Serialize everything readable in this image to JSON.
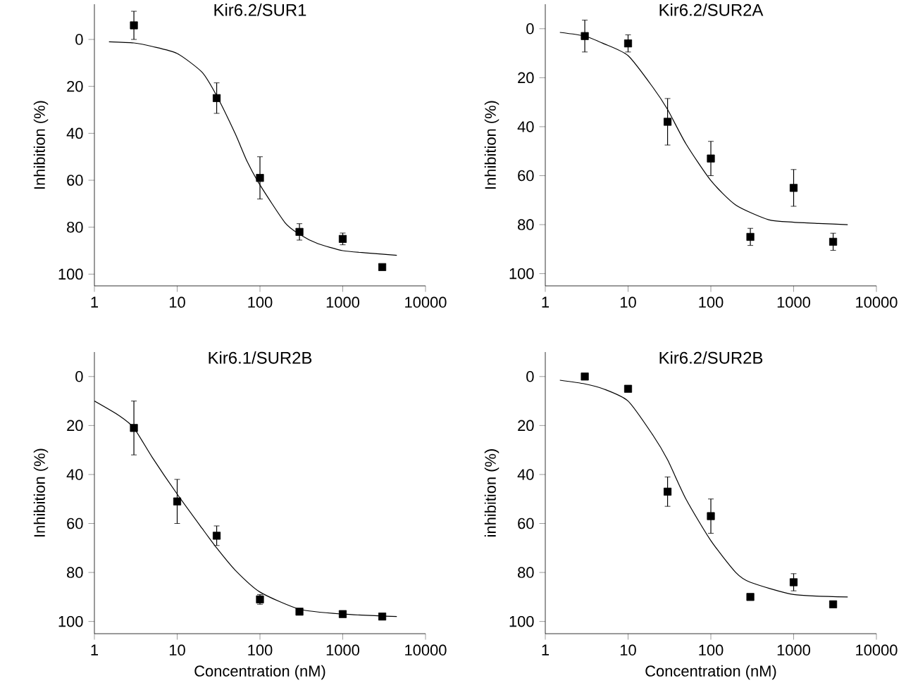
{
  "chart_data": [
    {
      "type": "scatter",
      "title": "Kir6.2/SUR1",
      "ylabel": "Inhibition (%)",
      "log": "x",
      "xlim": [
        1,
        10000
      ],
      "ylim": [
        105,
        -15
      ],
      "xticks": [
        1,
        10,
        100,
        1000,
        10000
      ],
      "yticks": [
        0,
        20,
        40,
        60,
        80,
        100
      ],
      "marker": "square",
      "series": [
        {
          "type": "scatter",
          "color": "#000000",
          "x": [
            3,
            30,
            100,
            300,
            1000,
            3000
          ],
          "values": [
            -6,
            25,
            59,
            82,
            85,
            97
          ],
          "errors": [
            6,
            6.5,
            9,
            3.5,
            2.5,
            null
          ]
        },
        {
          "type": "line",
          "color": "#000000",
          "marker": "none",
          "line_style": "solid",
          "x": [
            1.5,
            3,
            5,
            10,
            20,
            30,
            50,
            70,
            100,
            200,
            300,
            500,
            1000,
            2000,
            4500
          ],
          "values": [
            1,
            1.5,
            3,
            6,
            14,
            24,
            40,
            52,
            62,
            78,
            83,
            87,
            90,
            91,
            92
          ]
        }
      ]
    },
    {
      "type": "scatter",
      "title": "Kir6.2/SUR2A",
      "ylabel": "Inhibition (%)",
      "log": "x",
      "xlim": [
        1,
        10000
      ],
      "ylim": [
        105,
        -10
      ],
      "xticks": [
        1,
        10,
        100,
        1000,
        10000
      ],
      "yticks": [
        0,
        20,
        40,
        60,
        80,
        100
      ],
      "marker": "square",
      "series": [
        {
          "type": "scatter",
          "color": "#000000",
          "x": [
            3,
            10,
            30,
            100,
            300,
            1000,
            3000
          ],
          "values": [
            3,
            6,
            38,
            53,
            85,
            65,
            87
          ],
          "errors": [
            6.5,
            3.5,
            9.5,
            7,
            3.5,
            7.5,
            3.5
          ]
        },
        {
          "type": "line",
          "color": "#000000",
          "marker": "none",
          "line_style": "solid",
          "x": [
            1.5,
            3,
            5,
            10,
            20,
            30,
            50,
            100,
            200,
            500,
            1000,
            2000,
            4500
          ],
          "values": [
            1.5,
            3,
            6,
            11,
            24,
            33,
            47,
            62,
            72,
            78,
            79,
            79.5,
            80
          ]
        }
      ]
    },
    {
      "type": "scatter",
      "title": "Kir6.1/SUR2B",
      "xlabel": "Concentration (nM)",
      "ylabel": "Inhibition (%)",
      "log": "x",
      "xlim": [
        1,
        10000
      ],
      "ylim": [
        105,
        -10
      ],
      "xticks": [
        1,
        10,
        100,
        1000,
        10000
      ],
      "yticks": [
        0,
        20,
        40,
        60,
        80,
        100
      ],
      "marker": "square",
      "series": [
        {
          "type": "scatter",
          "color": "#000000",
          "x": [
            3,
            10,
            30,
            100,
            300,
            1000,
            3000
          ],
          "values": [
            21,
            51,
            65,
            91,
            96,
            97,
            98
          ],
          "errors": [
            11,
            9,
            4,
            2,
            null,
            null,
            null
          ]
        },
        {
          "type": "line",
          "color": "#000000",
          "marker": "none",
          "line_style": "solid",
          "x": [
            1,
            2,
            3,
            5,
            10,
            20,
            30,
            50,
            100,
            300,
            1000,
            4500
          ],
          "values": [
            10,
            16,
            21,
            33,
            48,
            62,
            70,
            79,
            88,
            95,
            97,
            98
          ]
        }
      ]
    },
    {
      "type": "scatter",
      "title": "Kir6.2/SUR2B",
      "xlabel": "Concentration (nM)",
      "ylabel": "inhibition (%)",
      "log": "x",
      "xlim": [
        1,
        10000
      ],
      "ylim": [
        105,
        -10
      ],
      "xticks": [
        1,
        10,
        100,
        1000,
        10000
      ],
      "yticks": [
        0,
        20,
        40,
        60,
        80,
        100
      ],
      "marker": "square",
      "series": [
        {
          "type": "scatter",
          "color": "#000000",
          "x": [
            3,
            10,
            30,
            100,
            300,
            1000,
            3000
          ],
          "values": [
            0,
            5,
            47,
            57,
            90,
            84,
            93
          ],
          "errors": [
            null,
            null,
            6,
            7,
            null,
            3.5,
            null
          ]
        },
        {
          "type": "line",
          "color": "#000000",
          "marker": "none",
          "line_style": "solid",
          "x": [
            1.5,
            3,
            5,
            10,
            20,
            30,
            50,
            100,
            200,
            300,
            1000,
            4500
          ],
          "values": [
            1.5,
            3,
            5,
            10,
            24,
            34,
            50,
            67,
            80,
            84,
            89,
            90
          ]
        }
      ]
    }
  ]
}
